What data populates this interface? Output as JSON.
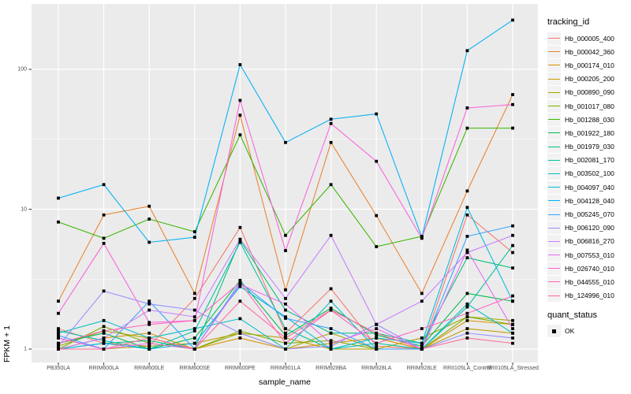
{
  "figure": {
    "y_axis_title": "FPKM + 1",
    "x_axis_title": "sample_name",
    "legend_title": "tracking_id",
    "quant_legend_title": "quant_status",
    "quant_ok_label": "OK",
    "colors": {
      "panel_bg": "#EBEBEB",
      "grid": "#FFFFFF",
      "legend_key_bg": "#F2F2F2",
      "point": "#000000",
      "tick_text": "#4D4D4D",
      "tick_mark": "#333333"
    }
  },
  "chart_data": {
    "type": "line",
    "title": "",
    "xlabel": "sample_name",
    "ylabel": "FPKM + 1",
    "x_scale": "categorical",
    "y_scale": "log10",
    "ylim": [
      1,
      290
    ],
    "y_ticks": [
      1,
      10,
      100
    ],
    "y_minor_ticks": [
      3.162,
      31.62
    ],
    "grid": true,
    "legend_position": "right",
    "point_marker": "black-square",
    "categories": [
      "PB350LA",
      "RRIM600LA",
      "RRIM600LE",
      "RRIM600SE",
      "RRIM600PE",
      "RRIM901LA",
      "RRIM928BA",
      "RRIM928LA",
      "RRIM928LE",
      "RRII105LA_Control",
      "RRII105LA_Stressed"
    ],
    "series": [
      {
        "name": "Hb_000005_400",
        "color": "#F8766D",
        "values": [
          1.4,
          1.1,
          1.05,
          2.3,
          7.4,
          1.3,
          2.7,
          1.05,
          1.0,
          9.1,
          4.9
        ]
      },
      {
        "name": "Hb_000042_360",
        "color": "#EA8331",
        "values": [
          2.2,
          9.1,
          10.5,
          2.5,
          47,
          2.65,
          30,
          9.0,
          2.5,
          13.5,
          66
        ]
      },
      {
        "name": "Hb_000174_010",
        "color": "#D89000",
        "values": [
          1.0,
          1.2,
          1.3,
          1.0,
          1.2,
          1.0,
          1.1,
          1.2,
          1.0,
          1.6,
          1.5
        ]
      },
      {
        "name": "Hb_000205_200",
        "color": "#C09B00",
        "values": [
          1.2,
          1.0,
          1.05,
          1.1,
          1.3,
          1.2,
          1.0,
          1.0,
          1.0,
          1.4,
          1.3
        ]
      },
      {
        "name": "Hb_000890_090",
        "color": "#A3A500",
        "values": [
          1.05,
          1.35,
          1.2,
          1.0,
          1.3,
          1.0,
          1.3,
          1.0,
          1.2,
          1.7,
          1.6
        ]
      },
      {
        "name": "Hb_001017_080",
        "color": "#7CAE00",
        "values": [
          1.0,
          1.45,
          1.1,
          1.0,
          1.35,
          1.1,
          1.15,
          1.0,
          1.0,
          1.7,
          1.5
        ]
      },
      {
        "name": "Hb_001288_030",
        "color": "#39B600",
        "values": [
          8.1,
          6.2,
          8.5,
          6.9,
          34,
          6.5,
          15,
          5.4,
          6.4,
          38,
          38
        ]
      },
      {
        "name": "Hb_001922_180",
        "color": "#00BB4E",
        "values": [
          1.1,
          1.3,
          1.0,
          1.2,
          3.1,
          1.25,
          1.96,
          1.26,
          1.05,
          2.5,
          2.2
        ]
      },
      {
        "name": "Hb_001979_030",
        "color": "#00BF7D",
        "values": [
          1.0,
          1.1,
          1.15,
          1.0,
          6.0,
          1.9,
          1.3,
          1.3,
          1.1,
          4.5,
          3.8
        ]
      },
      {
        "name": "Hb_002081_170",
        "color": "#00C1A3",
        "values": [
          1.35,
          1.15,
          1.0,
          1.35,
          5.8,
          1.4,
          1.0,
          1.1,
          1.0,
          2.0,
          5.5
        ]
      },
      {
        "name": "Hb_003502_100",
        "color": "#00BFC4",
        "values": [
          1.3,
          1.6,
          1.2,
          1.4,
          1.65,
          1.0,
          2.2,
          1.0,
          1.0,
          2.1,
          1.3
        ]
      },
      {
        "name": "Hb_004097_040",
        "color": "#00BAE0",
        "values": [
          1.0,
          1.1,
          1.0,
          1.1,
          2.8,
          1.7,
          1.0,
          1.2,
          1.1,
          10.3,
          2.2
        ]
      },
      {
        "name": "Hb_004128_040",
        "color": "#00B0F6",
        "values": [
          12,
          15,
          5.8,
          6.3,
          108,
          30,
          44,
          48,
          6.3,
          136,
          225
        ]
      },
      {
        "name": "Hb_005245_070",
        "color": "#35A2FF",
        "values": [
          1.25,
          1.0,
          2.2,
          1.0,
          3.0,
          1.66,
          1.4,
          1.0,
          1.0,
          6.4,
          7.6
        ]
      },
      {
        "name": "Hb_006120_090",
        "color": "#9590FF",
        "values": [
          1.05,
          2.6,
          2.1,
          1.9,
          1.3,
          1.0,
          1.05,
          1.5,
          1.0,
          1.3,
          1.2
        ]
      },
      {
        "name": "Hb_006816_270",
        "color": "#C77CFF",
        "values": [
          1.0,
          1.2,
          1.9,
          1.7,
          6.1,
          2.3,
          6.5,
          1.5,
          2.2,
          4.9,
          6.5
        ]
      },
      {
        "name": "Hb_007553_010",
        "color": "#E76BF3",
        "values": [
          1.2,
          1.0,
          1.1,
          1.0,
          2.9,
          2.1,
          1.1,
          1.4,
          1.0,
          5.1,
          1.4
        ]
      },
      {
        "name": "Hb_026740_010",
        "color": "#FA62DB",
        "values": [
          1.8,
          5.7,
          1.55,
          1.6,
          60,
          5.06,
          41,
          22,
          6.2,
          53,
          56
        ]
      },
      {
        "name": "Hb_044555_010",
        "color": "#FF62BC",
        "values": [
          1.1,
          1.35,
          1.5,
          1.6,
          3.0,
          1.1,
          1.9,
          1.1,
          1.4,
          1.8,
          2.4
        ]
      },
      {
        "name": "Hb_124996_010",
        "color": "#FF6A98",
        "values": [
          1.0,
          1.0,
          1.2,
          1.0,
          2.2,
          1.2,
          1.9,
          1.3,
          1.0,
          1.2,
          1.1
        ]
      }
    ],
    "quant_status_legend": {
      "title": "quant_status",
      "entries": [
        "OK"
      ]
    }
  }
}
